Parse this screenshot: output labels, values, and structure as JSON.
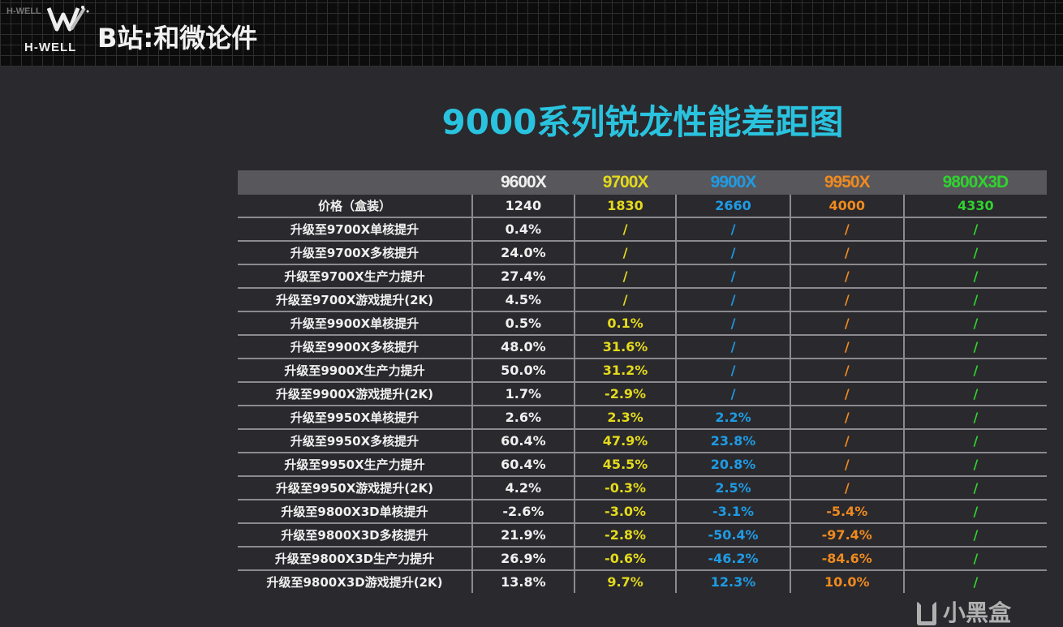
{
  "header": {
    "logo_text": "H-WELL",
    "channel": "B站:和微论件"
  },
  "title": "9000系列锐龙性能差距图",
  "colors": {
    "9600X": "#f0f0f0",
    "9700X": "#e4da1c",
    "9900X": "#1f9be4",
    "9950X": "#ef8a1f",
    "9800X3D": "#2fd32f",
    "title": "#2ac3df"
  },
  "table": {
    "columns": [
      "",
      "9600X",
      "9700X",
      "9900X",
      "9950X",
      "9800X3D"
    ],
    "rows": [
      [
        "价格（盒装）",
        "1240",
        "1830",
        "2660",
        "4000",
        "4330"
      ],
      [
        "升级至9700X单核提升",
        "0.4%",
        "/",
        "/",
        "/",
        "/"
      ],
      [
        "升级至9700X多核提升",
        "24.0%",
        "/",
        "/",
        "/",
        "/"
      ],
      [
        "升级至9700X生产力提升",
        "27.4%",
        "/",
        "/",
        "/",
        "/"
      ],
      [
        "升级至9700X游戏提升(2K)",
        "4.5%",
        "/",
        "/",
        "/",
        "/"
      ],
      [
        "升级至9900X单核提升",
        "0.5%",
        "0.1%",
        "/",
        "/",
        "/"
      ],
      [
        "升级至9900X多核提升",
        "48.0%",
        "31.6%",
        "/",
        "/",
        "/"
      ],
      [
        "升级至9900X生产力提升",
        "50.0%",
        "31.2%",
        "/",
        "/",
        "/"
      ],
      [
        "升级至9900X游戏提升(2K)",
        "1.7%",
        "-2.9%",
        "/",
        "/",
        "/"
      ],
      [
        "升级至9950X单核提升",
        "2.6%",
        "2.3%",
        "2.2%",
        "/",
        "/"
      ],
      [
        "升级至9950X多核提升",
        "60.4%",
        "47.9%",
        "23.8%",
        "/",
        "/"
      ],
      [
        "升级至9950X生产力提升",
        "60.4%",
        "45.5%",
        "20.8%",
        "/",
        "/"
      ],
      [
        "升级至9950X游戏提升(2K)",
        "4.2%",
        "-0.3%",
        "2.5%",
        "/",
        "/"
      ],
      [
        "升级至9800X3D单核提升",
        "-2.6%",
        "-3.0%",
        "-3.1%",
        "-5.4%",
        "/"
      ],
      [
        "升级至9800X3D多核提升",
        "21.9%",
        "-2.8%",
        "-50.4%",
        "-97.4%",
        "/"
      ],
      [
        "升级至9800X3D生产力提升",
        "26.9%",
        "-0.6%",
        "-46.2%",
        "-84.6%",
        "/"
      ],
      [
        "升级至9800X3D游戏提升(2K)",
        "13.8%",
        "9.7%",
        "12.3%",
        "10.0%",
        "/"
      ]
    ]
  },
  "watermark": "小黑盒"
}
